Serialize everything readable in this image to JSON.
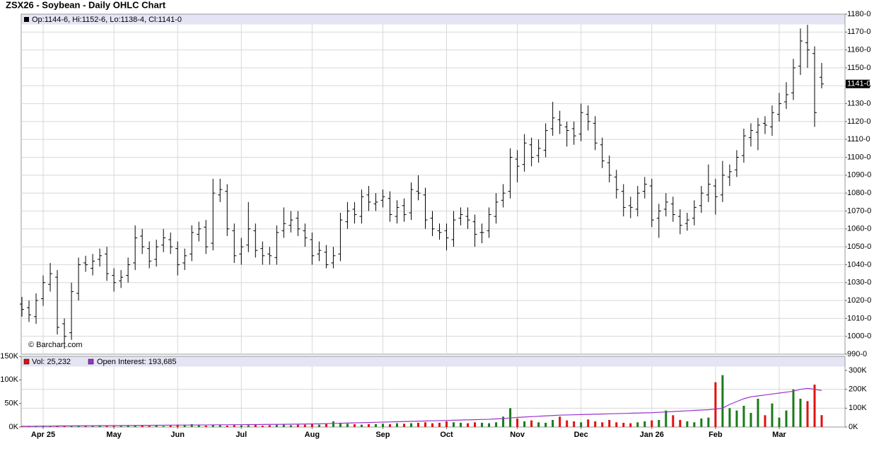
{
  "chart_data": [
    {
      "type": "ohlc",
      "title": "ZSX26 - Soybean - Daily OHLC Chart",
      "legend_text": "Op:1144-6, Hi:1152-6, Lo:1138-4, Cl:1141-0",
      "watermark": "© Barchart.com",
      "color": "#000000",
      "grid": true,
      "last_label": "1141-0",
      "open": [
        1018,
        1016,
        1011,
        1021,
        1029,
        1033,
        1007,
        1002,
        1024,
        1041,
        1038,
        1043,
        1046,
        1034,
        1031,
        1034,
        1041,
        1056,
        1049,
        1043,
        1051,
        1054,
        1049,
        1041,
        1046,
        1057,
        1061,
        1052,
        1079,
        1081,
        1059,
        1046,
        1051,
        1059,
        1049,
        1046,
        1044,
        1059,
        1062,
        1066,
        1059,
        1054,
        1046,
        1047,
        1041,
        1046,
        1064,
        1071,
        1067,
        1079,
        1074,
        1076,
        1077,
        1067,
        1073,
        1069,
        1081,
        1079,
        1066,
        1059,
        1059,
        1054,
        1066,
        1067,
        1064,
        1058,
        1059,
        1067,
        1076,
        1081,
        1099,
        1096,
        1107,
        1101,
        1104,
        1116,
        1121,
        1117,
        1116,
        1113,
        1124,
        1119,
        1107,
        1097,
        1089,
        1081,
        1073,
        1071,
        1081,
        1084,
        1066,
        1071,
        1074,
        1067,
        1063,
        1066,
        1073,
        1079,
        1084,
        1079,
        1089,
        1093,
        1101,
        1111,
        1114,
        1119,
        1117,
        1124,
        1131,
        1136,
        1151,
        1164,
        1158,
        1144.75
      ],
      "high": [
        1022,
        1020,
        1024,
        1034,
        1041,
        1037,
        1010,
        1030,
        1044,
        1045,
        1046,
        1049,
        1050,
        1038,
        1037,
        1044,
        1062,
        1060,
        1053,
        1054,
        1060,
        1058,
        1053,
        1049,
        1062,
        1064,
        1065,
        1088,
        1088,
        1085,
        1063,
        1055,
        1075,
        1063,
        1053,
        1050,
        1062,
        1072,
        1070,
        1070,
        1063,
        1058,
        1053,
        1051,
        1050,
        1069,
        1075,
        1075,
        1082,
        1084,
        1080,
        1082,
        1081,
        1076,
        1077,
        1086,
        1090,
        1083,
        1070,
        1063,
        1063,
        1070,
        1072,
        1072,
        1068,
        1063,
        1072,
        1080,
        1085,
        1105,
        1104,
        1113,
        1111,
        1110,
        1119,
        1131,
        1126,
        1120,
        1120,
        1130,
        1129,
        1123,
        1111,
        1101,
        1093,
        1085,
        1078,
        1084,
        1089,
        1088,
        1074,
        1080,
        1078,
        1071,
        1069,
        1076,
        1084,
        1096,
        1088,
        1098,
        1096,
        1104,
        1116,
        1119,
        1122,
        1123,
        1129,
        1136,
        1142,
        1155,
        1172,
        1174,
        1162,
        1152.75
      ],
      "low": [
        1011,
        1008,
        1007,
        1017,
        1025,
        1001,
        993,
        998,
        1020,
        1036,
        1034,
        1039,
        1031,
        1025,
        1027,
        1030,
        1037,
        1046,
        1038,
        1039,
        1047,
        1046,
        1034,
        1037,
        1042,
        1053,
        1046,
        1048,
        1075,
        1056,
        1041,
        1040,
        1047,
        1044,
        1040,
        1040,
        1040,
        1055,
        1058,
        1056,
        1050,
        1040,
        1042,
        1038,
        1038,
        1042,
        1060,
        1063,
        1063,
        1070,
        1070,
        1072,
        1064,
        1063,
        1064,
        1065,
        1076,
        1060,
        1056,
        1054,
        1048,
        1050,
        1062,
        1060,
        1050,
        1052,
        1055,
        1063,
        1072,
        1077,
        1086,
        1092,
        1095,
        1097,
        1100,
        1112,
        1113,
        1106,
        1107,
        1109,
        1115,
        1104,
        1094,
        1086,
        1077,
        1067,
        1066,
        1067,
        1077,
        1061,
        1055,
        1067,
        1064,
        1057,
        1059,
        1062,
        1069,
        1075,
        1068,
        1075,
        1084,
        1089,
        1097,
        1106,
        1104,
        1113,
        1112,
        1120,
        1127,
        1132,
        1146,
        1150,
        1117,
        1138.5
      ],
      "close": [
        1015,
        1012,
        1020,
        1030,
        1035,
        1005,
        1000,
        1025,
        1040,
        1040,
        1042,
        1045,
        1035,
        1030,
        1033,
        1040,
        1055,
        1050,
        1042,
        1050,
        1055,
        1050,
        1040,
        1045,
        1058,
        1060,
        1050,
        1080,
        1082,
        1060,
        1045,
        1050,
        1060,
        1048,
        1045,
        1045,
        1058,
        1063,
        1065,
        1060,
        1055,
        1045,
        1048,
        1040,
        1045,
        1065,
        1070,
        1068,
        1078,
        1075,
        1075,
        1078,
        1068,
        1072,
        1068,
        1082,
        1080,
        1065,
        1060,
        1058,
        1055,
        1065,
        1068,
        1065,
        1057,
        1058,
        1068,
        1075,
        1080,
        1100,
        1095,
        1108,
        1100,
        1105,
        1115,
        1122,
        1118,
        1115,
        1112,
        1125,
        1120,
        1108,
        1098,
        1090,
        1082,
        1072,
        1072,
        1080,
        1085,
        1065,
        1070,
        1075,
        1068,
        1062,
        1065,
        1072,
        1080,
        1085,
        1078,
        1090,
        1092,
        1100,
        1112,
        1115,
        1118,
        1118,
        1125,
        1130,
        1135,
        1150,
        1165,
        1160,
        1125,
        1141
      ],
      "ylim": [
        990,
        1180
      ],
      "yticks": [
        {
          "value": 990,
          "label": "990-0"
        },
        {
          "value": 1000,
          "label": "1000-0"
        },
        {
          "value": 1010,
          "label": "1010-0"
        },
        {
          "value": 1020,
          "label": "1020-0"
        },
        {
          "value": 1030,
          "label": "1030-0"
        },
        {
          "value": 1040,
          "label": "1040-0"
        },
        {
          "value": 1050,
          "label": "1050-0"
        },
        {
          "value": 1060,
          "label": "1060-0"
        },
        {
          "value": 1070,
          "label": "1070-0"
        },
        {
          "value": 1080,
          "label": "1080-0"
        },
        {
          "value": 1090,
          "label": "1090-0"
        },
        {
          "value": 1100,
          "label": "1100-0"
        },
        {
          "value": 1110,
          "label": "1110-0"
        },
        {
          "value": 1120,
          "label": "1120-0"
        },
        {
          "value": 1130,
          "label": "1130-0"
        },
        {
          "value": 1140,
          "label": "1140-0"
        },
        {
          "value": 1150,
          "label": "1150-0"
        },
        {
          "value": 1160,
          "label": "1160-0"
        },
        {
          "value": 1170,
          "label": "1170-0"
        },
        {
          "value": 1180,
          "label": "1180-0"
        }
      ]
    },
    {
      "type": "bar",
      "grid": true,
      "up_color": "#1a7a1a",
      "down_color": "#e01010",
      "categories": [
        null,
        null,
        null,
        "Apr 25",
        null,
        null,
        null,
        null,
        null,
        null,
        null,
        null,
        null,
        "May",
        null,
        null,
        null,
        null,
        null,
        null,
        null,
        null,
        "Jun",
        null,
        null,
        null,
        null,
        null,
        null,
        null,
        null,
        "Jul",
        null,
        null,
        null,
        null,
        null,
        null,
        null,
        null,
        null,
        "Aug",
        null,
        null,
        null,
        null,
        null,
        null,
        null,
        null,
        null,
        "Sep",
        null,
        null,
        null,
        null,
        null,
        null,
        null,
        null,
        "Oct",
        null,
        null,
        null,
        null,
        null,
        null,
        null,
        null,
        null,
        "Nov",
        null,
        null,
        null,
        null,
        null,
        null,
        null,
        null,
        "Dec",
        null,
        null,
        null,
        null,
        null,
        null,
        null,
        null,
        null,
        "Jan 26",
        null,
        null,
        null,
        null,
        null,
        null,
        null,
        null,
        "Feb",
        null,
        null,
        null,
        null,
        null,
        null,
        null,
        null,
        "Mar",
        null,
        null,
        null,
        null,
        null,
        null
      ],
      "series": [
        {
          "name": "Vol: 25,232",
          "color": "#e01010",
          "values": [
            2000,
            1500,
            2000,
            2500,
            2000,
            3000,
            2000,
            2500,
            3000,
            2000,
            2000,
            2500,
            3000,
            2000,
            2000,
            3000,
            3500,
            3000,
            2500,
            3000,
            2000,
            3000,
            5000,
            4000,
            6000,
            4000,
            3000,
            5000,
            4000,
            3000,
            4000,
            3500,
            4000,
            5000,
            3000,
            4000,
            4500,
            5000,
            4000,
            5000,
            5000,
            6000,
            5000,
            7000,
            12000,
            9000,
            7000,
            6000,
            5000,
            6000,
            6000,
            7000,
            6000,
            8000,
            7000,
            8000,
            9000,
            10000,
            8000,
            9000,
            12000,
            10000,
            9000,
            8000,
            10000,
            9000,
            8000,
            10000,
            22000,
            40000,
            18000,
            12000,
            14000,
            10000,
            9000,
            15000,
            22000,
            14000,
            12000,
            10000,
            16000,
            12000,
            10000,
            15000,
            10000,
            9000,
            8000,
            10000,
            12000,
            14000,
            15000,
            35000,
            25000,
            15000,
            12000,
            10000,
            18000,
            20000,
            95000,
            110000,
            40000,
            35000,
            45000,
            30000,
            60000,
            25000,
            50000,
            20000,
            35000,
            80000,
            60000,
            55000,
            90000,
            25232
          ]
        },
        {
          "name": "Open Interest: 193,685",
          "color": "#9933cc",
          "axis": "y2",
          "values": [
            4000,
            4000,
            4500,
            5000,
            5000,
            5500,
            6000,
            6000,
            6500,
            7000,
            7000,
            7500,
            7500,
            8000,
            8000,
            8500,
            8500,
            9000,
            9000,
            9500,
            9500,
            10000,
            10000,
            10500,
            10500,
            11000,
            11000,
            11500,
            12000,
            12000,
            12500,
            12500,
            13000,
            13000,
            13500,
            14000,
            14000,
            14500,
            15000,
            15500,
            16000,
            16500,
            17000,
            18000,
            19000,
            20000,
            21000,
            22000,
            23000,
            24000,
            25000,
            26000,
            27000,
            28000,
            29000,
            30000,
            31000,
            32000,
            33000,
            34000,
            35000,
            36000,
            37000,
            38000,
            39000,
            40000,
            41000,
            43000,
            45000,
            48000,
            51000,
            53000,
            55000,
            57000,
            59000,
            61000,
            63000,
            64000,
            65000,
            66000,
            67000,
            68000,
            69000,
            70000,
            71000,
            72000,
            73000,
            74000,
            75000,
            76000,
            78000,
            80000,
            82000,
            84000,
            86000,
            88000,
            90000,
            92000,
            95000,
            100000,
            120000,
            135000,
            150000,
            160000,
            165000,
            170000,
            175000,
            180000,
            185000,
            190000,
            200000,
            205000,
            200000,
            193685
          ]
        }
      ],
      "ylim": [
        0,
        150000
      ],
      "yticks": [
        {
          "value": 0,
          "label": "0K"
        },
        {
          "value": 50000,
          "label": "50K"
        },
        {
          "value": 100000,
          "label": "100K"
        },
        {
          "value": 150000,
          "label": "150K"
        }
      ],
      "y2lim": [
        0,
        300000
      ],
      "y2ticks": [
        {
          "value": 0,
          "label": "0K"
        },
        {
          "value": 100000,
          "label": "100K"
        },
        {
          "value": 200000,
          "label": "200K"
        },
        {
          "value": 300000,
          "label": "300K"
        }
      ]
    }
  ]
}
